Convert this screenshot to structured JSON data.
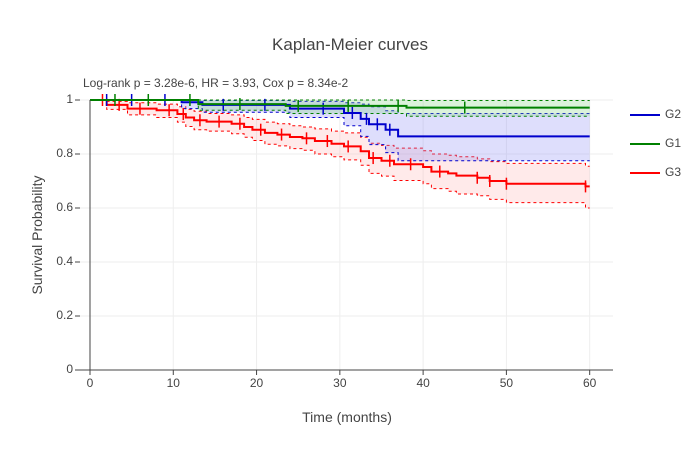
{
  "chart_data": {
    "type": "line",
    "title": "Kaplan-Meier curves",
    "subtitle": "Log-rank p = 3.28e-6, HR = 3.93, Cox p = 8.34e-2",
    "xlabel": "Time (months)",
    "ylabel": "Survival Probability",
    "xlim": [
      -1.2,
      62.8
    ],
    "ylim": [
      0,
      1.0
    ],
    "x_ticks": [
      0,
      10,
      20,
      30,
      40,
      50,
      60
    ],
    "y_ticks": [
      0,
      0.2,
      0.4,
      0.6,
      0.8,
      1
    ],
    "y_tick_labels": [
      "0",
      "0.2",
      "0.4",
      "0.6",
      "0.8",
      "1"
    ],
    "grid": true,
    "legend_position": "right",
    "series": [
      {
        "name": "G2",
        "color": "#0000cc",
        "fill": "#8a8af5",
        "steps": [
          [
            0,
            1.0
          ],
          [
            11,
            0.992
          ],
          [
            13.5,
            0.982
          ],
          [
            24,
            0.968
          ],
          [
            30.5,
            0.952
          ],
          [
            32.5,
            0.93
          ],
          [
            33.5,
            0.91
          ],
          [
            35.5,
            0.89
          ],
          [
            37,
            0.865
          ],
          [
            60,
            0.865
          ]
        ],
        "upper": [
          [
            0,
            1.0
          ],
          [
            11,
            1.0
          ],
          [
            13.5,
            0.998
          ],
          [
            24,
            0.995
          ],
          [
            30.5,
            0.99
          ],
          [
            32.5,
            0.985
          ],
          [
            33.5,
            0.975
          ],
          [
            35.5,
            0.96
          ],
          [
            37,
            0.95
          ],
          [
            60,
            0.95
          ]
        ],
        "lower": [
          [
            0,
            1.0
          ],
          [
            11,
            0.968
          ],
          [
            13.5,
            0.955
          ],
          [
            24,
            0.935
          ],
          [
            30.5,
            0.905
          ],
          [
            32.5,
            0.865
          ],
          [
            33.5,
            0.835
          ],
          [
            35.5,
            0.805
          ],
          [
            37,
            0.775
          ],
          [
            60,
            0.775
          ]
        ],
        "censors": [
          2,
          5,
          9,
          16,
          21,
          28,
          31.5,
          33.2,
          34.5,
          36
        ]
      },
      {
        "name": "G1",
        "color": "#008000",
        "fill": "#7fcf7f",
        "steps": [
          [
            0,
            1.0
          ],
          [
            13,
            0.985
          ],
          [
            23.5,
            0.978
          ],
          [
            38,
            0.972
          ],
          [
            60,
            0.972
          ]
        ],
        "upper": [
          [
            0,
            1.0
          ],
          [
            13,
            1.0
          ],
          [
            23.5,
            1.0
          ],
          [
            38,
            0.998
          ],
          [
            60,
            0.998
          ]
        ],
        "lower": [
          [
            0,
            1.0
          ],
          [
            13,
            0.962
          ],
          [
            23.5,
            0.95
          ],
          [
            38,
            0.94
          ],
          [
            60,
            0.94
          ]
        ],
        "censors": [
          3,
          7,
          12,
          18,
          25,
          31,
          37,
          45
        ]
      },
      {
        "name": "G3",
        "color": "#ff0000",
        "fill": "#ffb3b3",
        "steps": [
          [
            0,
            1.0
          ],
          [
            2,
            0.982
          ],
          [
            4.5,
            0.968
          ],
          [
            8,
            0.962
          ],
          [
            10.5,
            0.948
          ],
          [
            11.5,
            0.935
          ],
          [
            12.5,
            0.925
          ],
          [
            14,
            0.92
          ],
          [
            17,
            0.912
          ],
          [
            18.5,
            0.9
          ],
          [
            19.5,
            0.89
          ],
          [
            21,
            0.878
          ],
          [
            22.5,
            0.872
          ],
          [
            24,
            0.863
          ],
          [
            25.5,
            0.858
          ],
          [
            27,
            0.848
          ],
          [
            29,
            0.838
          ],
          [
            30.5,
            0.828
          ],
          [
            32.5,
            0.81
          ],
          [
            33.5,
            0.785
          ],
          [
            35,
            0.775
          ],
          [
            36.5,
            0.762
          ],
          [
            40,
            0.752
          ],
          [
            41,
            0.735
          ],
          [
            43,
            0.728
          ],
          [
            44,
            0.72
          ],
          [
            46.5,
            0.712
          ],
          [
            48,
            0.7
          ],
          [
            50,
            0.69
          ],
          [
            59.5,
            0.68
          ],
          [
            60,
            0.68
          ]
        ],
        "upper": [
          [
            0,
            1.0
          ],
          [
            2,
            0.995
          ],
          [
            4.5,
            0.99
          ],
          [
            8,
            0.985
          ],
          [
            10.5,
            0.975
          ],
          [
            11.5,
            0.965
          ],
          [
            12.5,
            0.958
          ],
          [
            14,
            0.95
          ],
          [
            17,
            0.945
          ],
          [
            18.5,
            0.935
          ],
          [
            19.5,
            0.928
          ],
          [
            21,
            0.918
          ],
          [
            22.5,
            0.912
          ],
          [
            24,
            0.905
          ],
          [
            25.5,
            0.9
          ],
          [
            27,
            0.893
          ],
          [
            29,
            0.885
          ],
          [
            30.5,
            0.878
          ],
          [
            32.5,
            0.862
          ],
          [
            33.5,
            0.84
          ],
          [
            35,
            0.832
          ],
          [
            36.5,
            0.822
          ],
          [
            40,
            0.812
          ],
          [
            41,
            0.8
          ],
          [
            43,
            0.795
          ],
          [
            44,
            0.79
          ],
          [
            46.5,
            0.782
          ],
          [
            48,
            0.772
          ],
          [
            50,
            0.765
          ],
          [
            59.5,
            0.755
          ],
          [
            60,
            0.755
          ]
        ],
        "lower": [
          [
            0,
            1.0
          ],
          [
            2,
            0.965
          ],
          [
            4.5,
            0.945
          ],
          [
            8,
            0.935
          ],
          [
            10.5,
            0.918
          ],
          [
            11.5,
            0.902
          ],
          [
            12.5,
            0.89
          ],
          [
            14,
            0.885
          ],
          [
            17,
            0.875
          ],
          [
            18.5,
            0.862
          ],
          [
            19.5,
            0.85
          ],
          [
            21,
            0.836
          ],
          [
            22.5,
            0.83
          ],
          [
            24,
            0.82
          ],
          [
            25.5,
            0.814
          ],
          [
            27,
            0.8
          ],
          [
            29,
            0.79
          ],
          [
            30.5,
            0.778
          ],
          [
            32.5,
            0.758
          ],
          [
            33.5,
            0.728
          ],
          [
            35,
            0.718
          ],
          [
            36.5,
            0.702
          ],
          [
            40,
            0.69
          ],
          [
            41,
            0.672
          ],
          [
            43,
            0.662
          ],
          [
            44,
            0.652
          ],
          [
            46.5,
            0.645
          ],
          [
            48,
            0.632
          ],
          [
            50,
            0.62
          ],
          [
            59.5,
            0.6
          ],
          [
            60,
            0.6
          ]
        ],
        "censors": [
          1.5,
          3.5,
          6,
          9.5,
          11.2,
          13.2,
          15.5,
          18,
          20.5,
          23,
          26,
          28.5,
          31,
          34,
          36,
          38.5,
          42,
          46.5,
          48,
          50,
          59.5
        ]
      }
    ]
  }
}
